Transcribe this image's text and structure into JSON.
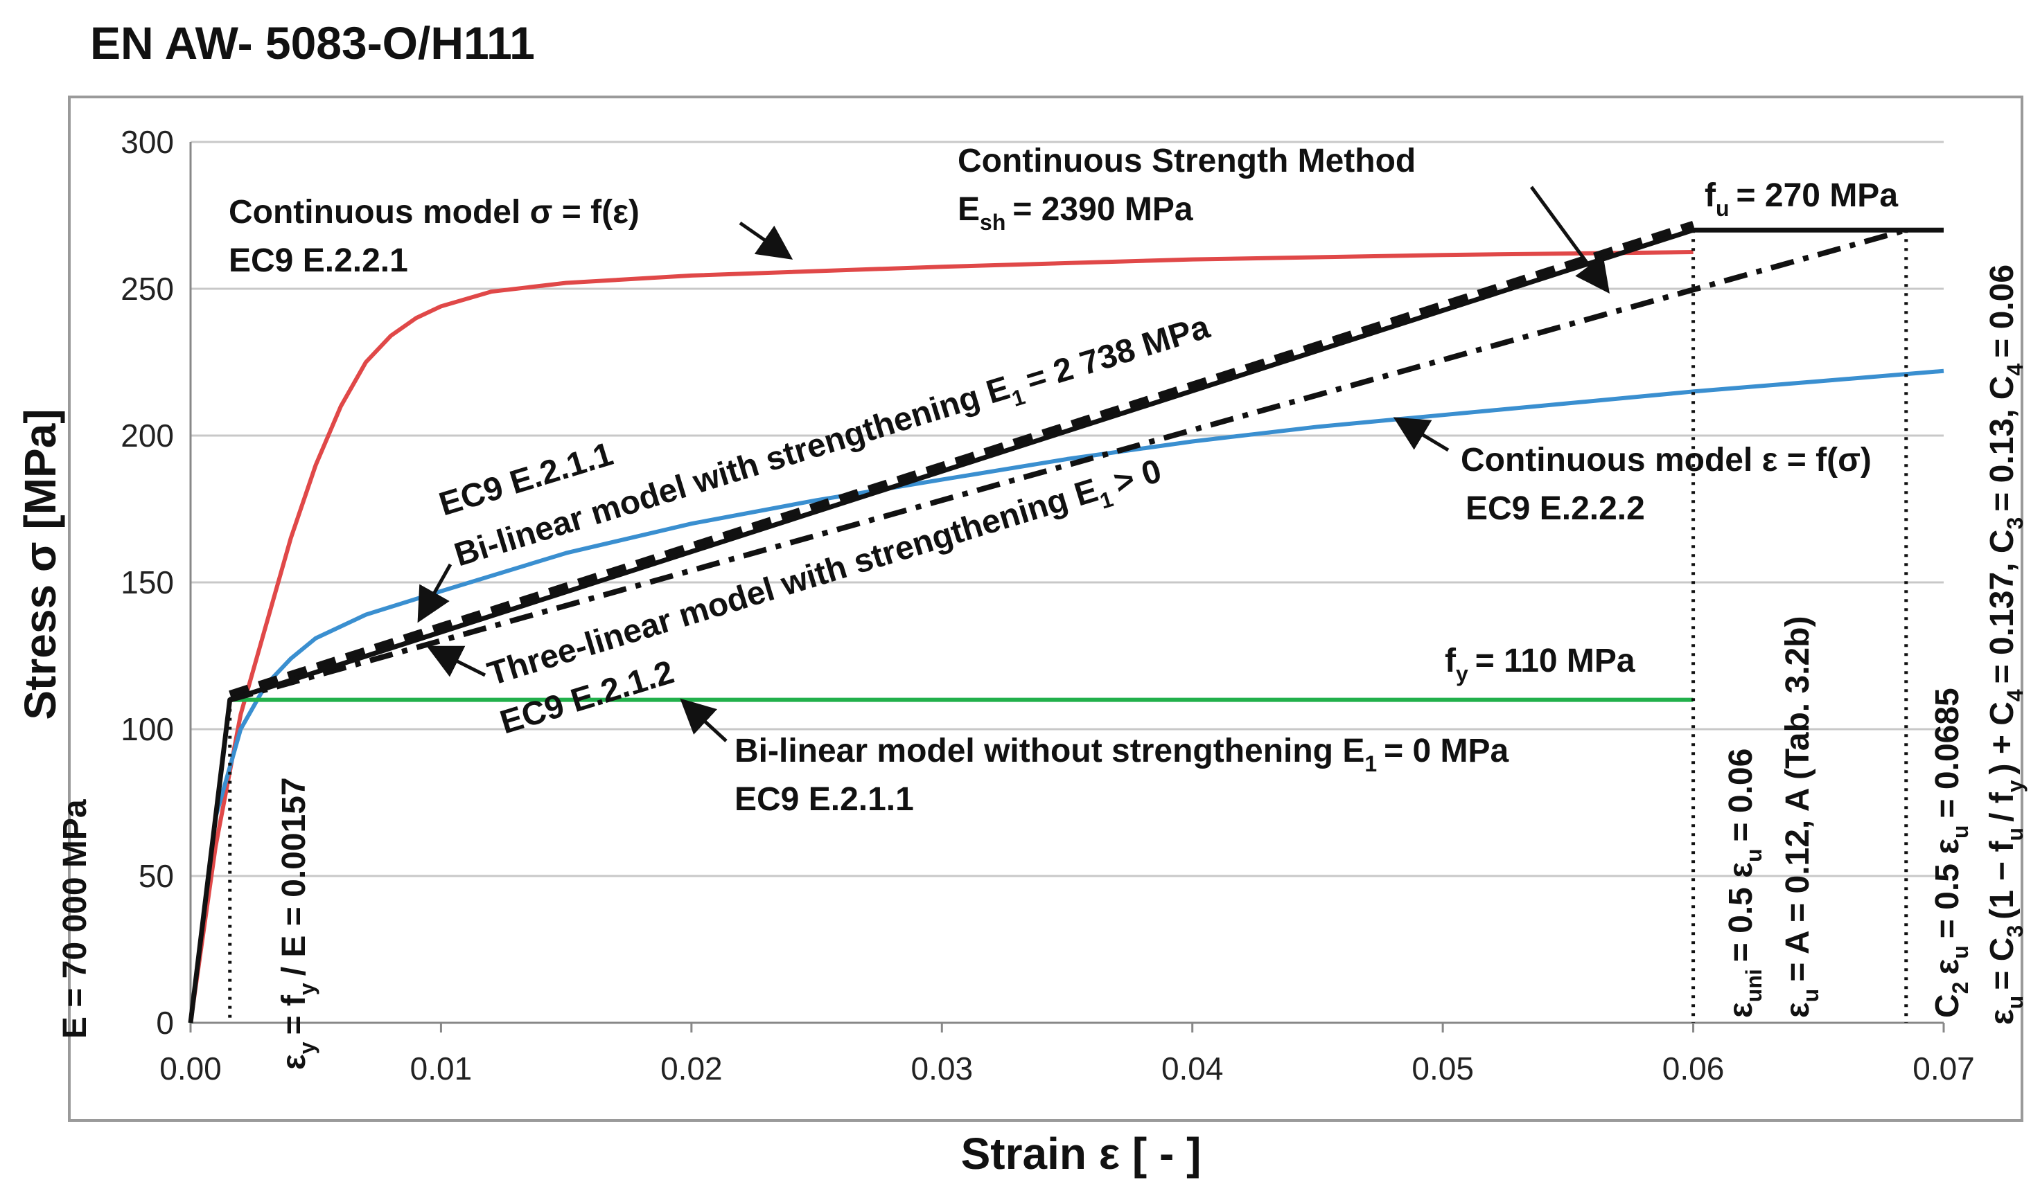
{
  "title": "EN AW- 5083-O/H111",
  "chart_data": {
    "type": "line",
    "title": "EN AW- 5083-O/H111",
    "xlabel": "Strain ε [ - ]",
    "ylabel": "Stress σ [MPa]",
    "xlim": [
      0,
      0.07
    ],
    "ylim": [
      0,
      300
    ],
    "x_ticks": [
      "0.00",
      "0.01",
      "0.02",
      "0.03",
      "0.04",
      "0.05",
      "0.06",
      "0.07"
    ],
    "y_ticks": [
      "0",
      "50",
      "100",
      "150",
      "200",
      "250",
      "300"
    ],
    "grid": "horizontal",
    "series": [
      {
        "name": "Continuous model σ = f(ε) EC9 E.2.2.1",
        "color": "#e04848",
        "style": "solid",
        "points": [
          [
            0,
            0
          ],
          [
            0.001,
            60
          ],
          [
            0.002,
            105
          ],
          [
            0.003,
            135
          ],
          [
            0.004,
            165
          ],
          [
            0.005,
            190
          ],
          [
            0.006,
            210
          ],
          [
            0.007,
            225
          ],
          [
            0.008,
            234
          ],
          [
            0.009,
            240
          ],
          [
            0.01,
            244
          ],
          [
            0.012,
            249
          ],
          [
            0.015,
            252
          ],
          [
            0.02,
            254.5
          ],
          [
            0.03,
            257.5
          ],
          [
            0.04,
            260
          ],
          [
            0.05,
            261.5
          ],
          [
            0.06,
            262.5
          ]
        ]
      },
      {
        "name": "Continuous model ε = f(σ) EC9 E.2.2.2",
        "color": "#3a8fd0",
        "style": "solid",
        "points": [
          [
            0,
            0
          ],
          [
            0.001,
            70
          ],
          [
            0.002,
            100
          ],
          [
            0.003,
            115
          ],
          [
            0.004,
            124
          ],
          [
            0.005,
            131
          ],
          [
            0.007,
            139
          ],
          [
            0.01,
            147
          ],
          [
            0.015,
            160
          ],
          [
            0.02,
            170
          ],
          [
            0.025,
            178
          ],
          [
            0.03,
            185
          ],
          [
            0.035,
            192
          ],
          [
            0.04,
            198
          ],
          [
            0.045,
            203
          ],
          [
            0.05,
            207
          ],
          [
            0.055,
            211
          ],
          [
            0.06,
            215
          ],
          [
            0.065,
            218.5
          ],
          [
            0.07,
            222
          ]
        ]
      },
      {
        "name": "Bi-linear model without strengthening E1 = 0 MPa EC9 E.2.1.1",
        "color": "#22b04b",
        "style": "solid",
        "points": [
          [
            0,
            0
          ],
          [
            0.00157,
            110
          ],
          [
            0.06,
            110
          ]
        ]
      },
      {
        "name": "Bi-linear model with strengthening E1 = 2 738 MPa EC9 E.2.1.1",
        "color": "#111111",
        "style": "dash",
        "points": [
          [
            0.00157,
            112
          ],
          [
            0.06,
            272
          ]
        ]
      },
      {
        "name": "Three-linear model with strengthening E1 > 0 EC9 E.2.1.2",
        "color": "#111111",
        "style": "dashdot",
        "points": [
          [
            0.00157,
            110
          ],
          [
            0.0685,
            270
          ]
        ]
      },
      {
        "name": "Continuous Strength Method Esh = 2390 MPa",
        "color": "#111111",
        "style": "solid",
        "points": [
          [
            0,
            0
          ],
          [
            0.00157,
            110
          ],
          [
            0.06,
            270
          ],
          [
            0.07,
            270
          ]
        ]
      }
    ],
    "reference_lines": [
      {
        "x": 0.00157,
        "label": "εy = fy / E = 0.00157"
      },
      {
        "x": 0.06,
        "label": "εuni = 0.5 εu = 0.06 | εu = A = 0.12, A (Tab. 3.2b)"
      },
      {
        "x": 0.0685,
        "label": "C2 εu = 0.5 εu = 0.0685 | εu = C3 (1 − fu / fy) + C4 = 0.137, C3 = 0.13, C4 = 0.06"
      }
    ]
  },
  "annotations": {
    "csm_title": "Continuous Strength Method",
    "csm_esh": "E",
    "csm_esh_sub": "sh",
    "csm_esh_value": "= 2390 MPa",
    "fu": "f",
    "fu_sub": "u",
    "fu_value": "= 270 MPa",
    "cont_sigma_1": "Continuous model σ = f(ε)",
    "cont_sigma_2": "EC9 E.2.2.1",
    "bilin_strength_1": "Bi-linear model with strengthening E",
    "bilin_strength_sub": "1",
    "bilin_strength_value": "= 2 738 MPa",
    "bilin_strength_2": "EC9 E.2.1.1",
    "three_lin_1": "Three-linear model with strengthening E",
    "three_lin_sub": "1",
    "three_lin_value": "> 0",
    "three_lin_2": "EC9 E.2.1.2",
    "cont_eps_1": "Continuous model ε = f(σ)",
    "cont_eps_2": "EC9 E.2.2.2",
    "fy": "f",
    "fy_sub": "y",
    "fy_value": "= 110 MPa",
    "bilin_no_1": "Bi-linear model without strengthening E",
    "bilin_no_sub": "1",
    "bilin_no_value": "= 0 MPa",
    "bilin_no_2": "EC9 E.2.1.1",
    "E_label": "E = 70 000 MPa",
    "eps_y_a": "ε",
    "eps_y_sub": "y",
    "eps_y_b": "= f",
    "eps_y_sub2": "y",
    "eps_y_c": "/ E = 0.00157",
    "euni_a": "ε",
    "euni_sub": "uni",
    "euni_b": "= 0.5 ε",
    "euni_sub2": "u",
    "euni_c": "= 0.06",
    "eu_a": "ε",
    "eu_sub": "u",
    "eu_b": "= A = 0.12,  A (Tab. 3.2b)",
    "c2_a": "C",
    "c2_sub": "2",
    "c2_b": "ε",
    "c2_sub2": "u",
    "c2_c": "= 0.5 ε",
    "c2_sub3": "u",
    "c2_d": "= 0.0685",
    "eu2_a": "ε",
    "eu2_sub": "u",
    "eu2_b": "= C",
    "eu2_sub2": "3",
    "eu2_c": "(1 − f",
    "eu2_sub3": "u",
    "eu2_d": "/ f",
    "eu2_sub4": "y",
    "eu2_e": ") + C",
    "eu2_sub5": "4",
    "eu2_f": "= 0.137,  C",
    "eu2_sub6": "3",
    "eu2_g": "= 0.13,  C",
    "eu2_sub7": "4",
    "eu2_h": "= 0.06"
  }
}
